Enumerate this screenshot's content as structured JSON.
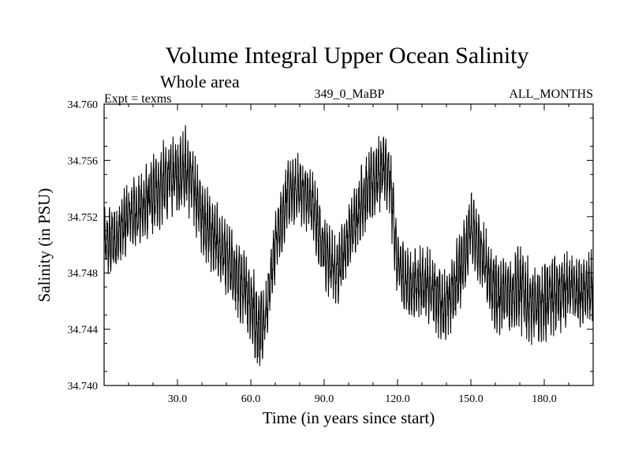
{
  "chart_data": {
    "type": "line",
    "title": "Volume Integral Upper Ocean Salinity",
    "subtitle": "Whole area",
    "experiment_label": "Expt = texms",
    "run_label": "349_0_MaBP",
    "months_label": "ALL_MONTHS",
    "xlabel": "Time (in years since start)",
    "ylabel": "Salinity (in PSU)",
    "xlim": [
      0,
      200
    ],
    "ylim": [
      34.74,
      34.76
    ],
    "x_ticks": [
      30,
      60,
      90,
      120,
      150,
      180
    ],
    "x_tick_labels": [
      "30.0",
      "60.0",
      "90.0",
      "120.0",
      "150.0",
      "180.0"
    ],
    "y_ticks": [
      34.74,
      34.744,
      34.748,
      34.752,
      34.756,
      34.76
    ],
    "y_tick_labels": [
      "34.740",
      "34.744",
      "34.748",
      "34.752",
      "34.756",
      "34.760"
    ],
    "samples_per_year": 12,
    "series": [
      {
        "name": "Salinity",
        "color": "#000000",
        "envelope_x": [
          0,
          5,
          10,
          15,
          20,
          25,
          30,
          33,
          36,
          40,
          45,
          50,
          55,
          60,
          63,
          66,
          70,
          75,
          80,
          85,
          90,
          95,
          100,
          105,
          110,
          114,
          117,
          120,
          125,
          130,
          135,
          140,
          145,
          150,
          155,
          160,
          165,
          170,
          175,
          180,
          185,
          190,
          195,
          200
        ],
        "envelope_center": [
          34.75,
          34.7505,
          34.752,
          34.7525,
          34.7535,
          34.7545,
          34.755,
          34.7555,
          34.7545,
          34.752,
          34.7505,
          34.749,
          34.7475,
          34.746,
          34.744,
          34.745,
          34.75,
          34.7535,
          34.754,
          34.753,
          34.7495,
          34.748,
          34.7505,
          34.753,
          34.7545,
          34.7555,
          34.7545,
          34.7485,
          34.747,
          34.7475,
          34.7465,
          34.7455,
          34.748,
          34.751,
          34.749,
          34.7465,
          34.7465,
          34.747,
          34.7455,
          34.746,
          34.7465,
          34.747,
          34.7465,
          34.747
        ],
        "envelope_halfwidth": [
          0.0022,
          0.0023,
          0.0024,
          0.0024,
          0.0025,
          0.0026,
          0.0026,
          0.0027,
          0.0025,
          0.0023,
          0.0024,
          0.0024,
          0.0025,
          0.0026,
          0.0028,
          0.0022,
          0.0022,
          0.0022,
          0.0022,
          0.0022,
          0.0024,
          0.0023,
          0.0022,
          0.0024,
          0.0025,
          0.0025,
          0.0025,
          0.0024,
          0.0023,
          0.0023,
          0.0024,
          0.0024,
          0.0025,
          0.0026,
          0.0025,
          0.0027,
          0.0024,
          0.0028,
          0.0026,
          0.0027,
          0.0026,
          0.0024,
          0.0022,
          0.0023
        ]
      }
    ]
  }
}
